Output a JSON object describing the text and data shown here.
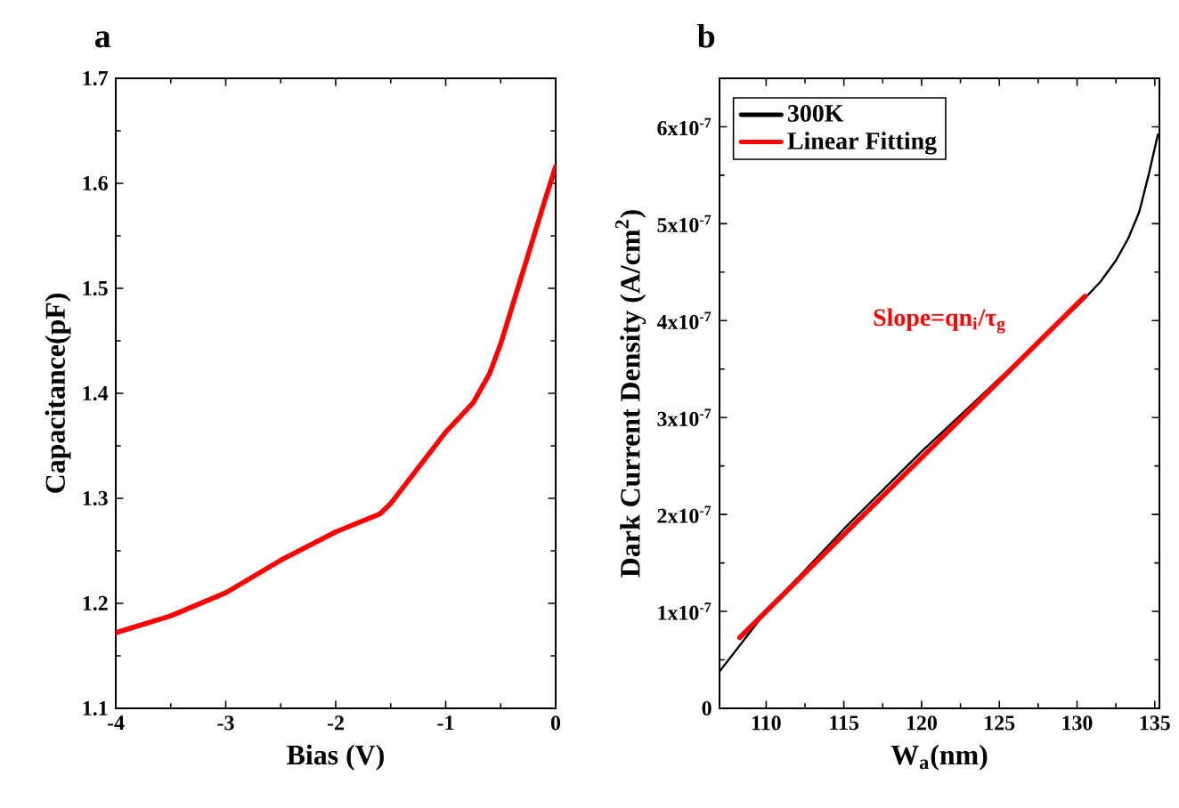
{
  "chart_data": [
    {
      "type": "line",
      "title": "a",
      "xlabel": "Bias (V)",
      "ylabel": "Capacitance(pF)",
      "x": [
        -4,
        -3.5,
        -3,
        -2.5,
        -2,
        -1.6,
        -1.5,
        -1.25,
        -1,
        -0.75,
        -0.6,
        -0.5,
        -0.4,
        -0.25,
        -0.1,
        0
      ],
      "values": [
        1.172,
        1.188,
        1.21,
        1.241,
        1.268,
        1.285,
        1.295,
        1.329,
        1.363,
        1.391,
        1.419,
        1.447,
        1.481,
        1.532,
        1.583,
        1.616
      ],
      "color": "#ff0000",
      "xlim": [
        -4,
        0
      ],
      "ylim": [
        1.1,
        1.7
      ],
      "xticks": [
        -4,
        -3,
        -2,
        -1,
        0
      ],
      "yticks": [
        1.1,
        1.2,
        1.3,
        1.4,
        1.5,
        1.6,
        1.7
      ],
      "grid": false,
      "legend": false
    },
    {
      "type": "line",
      "title": "b",
      "xlabel": "W$_{a}$(nm)",
      "ylabel": "Dark Current Density (A/cm$^{2}$)",
      "series": [
        {
          "name": "300K",
          "color": "#000000",
          "x": [
            107,
            110,
            115,
            120,
            123,
            125,
            128,
            130,
            130.5,
            131.5,
            132.5,
            133.3,
            134,
            134.6,
            135.2
          ],
          "values": [
            3.8e-08,
            1e-07,
            1.85e-07,
            2.65e-07,
            3.1e-07,
            3.4e-07,
            3.85e-07,
            4.15e-07,
            4.23e-07,
            4.4e-07,
            4.62e-07,
            4.85e-07,
            5.12e-07,
            5.5e-07,
            5.92e-07
          ]
        },
        {
          "name": "Linear Fitting",
          "color": "#ff0000",
          "x": [
            108.3,
            130.5
          ],
          "values": [
            7.3e-08,
            4.25e-07
          ]
        }
      ],
      "annotations": [
        "Slope=qn$_{i}$/τ$_{g}$"
      ],
      "xlim": [
        107,
        135.3
      ],
      "ylim": [
        0,
        6.5e-07
      ],
      "xticks": [
        110,
        115,
        120,
        125,
        130,
        135
      ],
      "yticks": [
        0,
        {
          "value": 1e-07,
          "label": "1x10$^{-7}$"
        },
        {
          "value": 2e-07,
          "label": "2x10$^{-7}$"
        },
        {
          "value": 3e-07,
          "label": "3x10$^{-7}$"
        },
        {
          "value": 4e-07,
          "label": "4x10$^{-7}$"
        },
        {
          "value": 5e-07,
          "label": "5x10$^{-7}$"
        },
        {
          "value": 6e-07,
          "label": "6x10$^{-7}$"
        }
      ],
      "grid": false,
      "legend": "top left"
    }
  ]
}
